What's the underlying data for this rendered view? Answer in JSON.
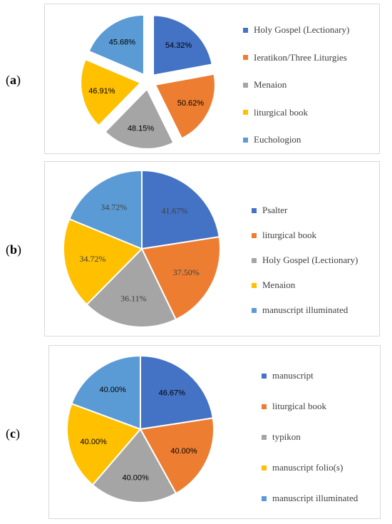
{
  "panels": [
    {
      "label": "a",
      "chart_data": {
        "type": "pie",
        "categories": [
          "Holy Gospel (Lectionary)",
          "Ieratikon/Three Liturgies",
          "Menaion",
          "liturgical book",
          "Euchologion"
        ],
        "values": [
          54.32,
          50.62,
          48.15,
          46.91,
          45.68
        ],
        "value_labels": [
          "54.32%",
          "50.62%",
          "48.15%",
          "46.91%",
          "45.68%"
        ],
        "colors": [
          "#4472c4",
          "#ed7d31",
          "#a5a5a5",
          "#ffc000",
          "#5b9bd5"
        ],
        "exploded": true,
        "legend_position": "right"
      }
    },
    {
      "label": "b",
      "chart_data": {
        "type": "pie",
        "categories": [
          "Psalter",
          "liturgical book",
          "Holy Gospel (Lectionary)",
          "Menaion",
          "manuscript illuminated"
        ],
        "values": [
          41.67,
          37.5,
          36.11,
          34.72,
          34.72
        ],
        "value_labels": [
          "41.67%",
          "37.50%",
          "36.11%",
          "34.72%",
          "34.72%"
        ],
        "colors": [
          "#4472c4",
          "#ed7d31",
          "#a5a5a5",
          "#ffc000",
          "#5b9bd5"
        ],
        "exploded": false,
        "legend_position": "right"
      }
    },
    {
      "label": "c",
      "chart_data": {
        "type": "pie",
        "categories": [
          "manuscript",
          "liturgical book",
          "typikon",
          "manuscript folio(s)",
          "manuscript illuminated"
        ],
        "values": [
          46.67,
          40.0,
          40.0,
          40.0,
          40.0
        ],
        "value_labels": [
          "46.67%",
          "40.00%",
          "40.00%",
          "40.00%",
          "40.00%"
        ],
        "colors": [
          "#4472c4",
          "#ed7d31",
          "#a5a5a5",
          "#ffc000",
          "#5b9bd5"
        ],
        "exploded": false,
        "legend_position": "right"
      }
    }
  ]
}
